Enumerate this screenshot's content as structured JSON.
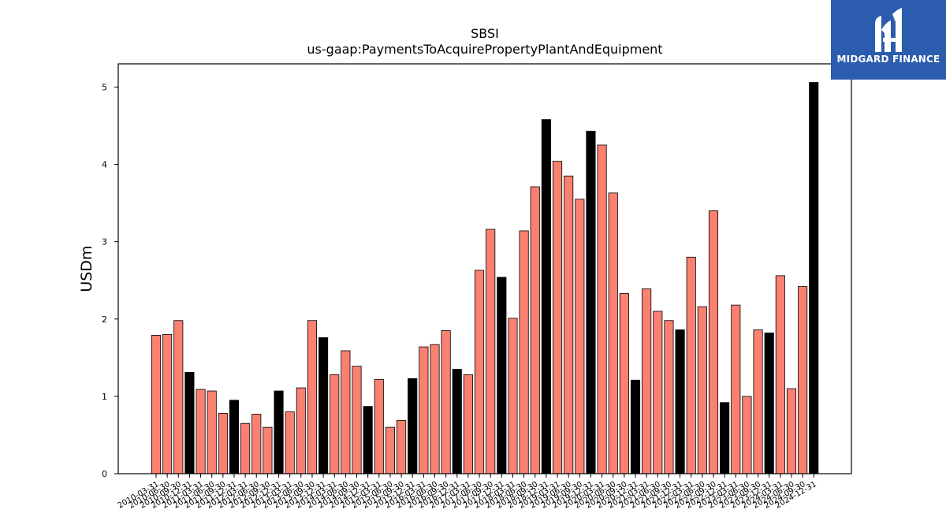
{
  "chart_data": {
    "type": "bar",
    "title": "SBSI",
    "subtitle": "us-gaap:PaymentsToAcquirePropertyPlantAndEquipment",
    "xlabel": "",
    "ylabel": "USDm",
    "ylim": [
      0,
      5.3
    ],
    "yticks": [
      0,
      1,
      2,
      3,
      4,
      5
    ],
    "grid": false,
    "colors": {
      "quarter": "#fa8072",
      "annual": "#000000",
      "edge": "#000000"
    },
    "categories": [
      "2010-03-31",
      "2010-06-30",
      "2010-09-30",
      "2010-12-31",
      "2011-03-31",
      "2011-06-30",
      "2011-09-30",
      "2011-12-31",
      "2012-03-31",
      "2012-06-30",
      "2012-09-30",
      "2012-12-31",
      "2013-03-31",
      "2013-06-30",
      "2013-09-30",
      "2013-12-31",
      "2014-03-31",
      "2014-06-30",
      "2014-09-30",
      "2014-12-31",
      "2015-03-31",
      "2015-06-30",
      "2015-09-30",
      "2015-12-31",
      "2016-03-31",
      "2016-06-30",
      "2016-09-30",
      "2016-12-31",
      "2017-03-31",
      "2017-06-30",
      "2017-09-30",
      "2017-12-31",
      "2018-03-31",
      "2018-06-30",
      "2018-09-30",
      "2018-12-31",
      "2019-03-31",
      "2019-06-30",
      "2019-09-30",
      "2019-12-31",
      "2020-03-31",
      "2020-06-30",
      "2020-09-30",
      "2020-12-31",
      "2021-03-31",
      "2021-06-30",
      "2021-09-30",
      "2021-12-31",
      "2022-03-31",
      "2022-06-30",
      "2022-09-30",
      "2022-12-31",
      "2023-03-31",
      "2023-06-30",
      "2023-09-30",
      "2023-12-31",
      "2024-03-31",
      "2024-06-30",
      "2024-09-30",
      "2024-12-31"
    ],
    "values": [
      1.79,
      1.8,
      1.98,
      1.31,
      1.09,
      1.07,
      0.78,
      0.95,
      0.65,
      0.77,
      0.6,
      1.07,
      0.8,
      1.11,
      1.98,
      1.76,
      1.28,
      1.59,
      1.39,
      0.87,
      1.22,
      0.6,
      0.69,
      1.23,
      1.64,
      1.67,
      1.85,
      1.35,
      1.28,
      2.63,
      3.16,
      2.54,
      2.01,
      3.14,
      3.71,
      4.58,
      4.04,
      3.85,
      3.55,
      4.43,
      4.25,
      3.63,
      2.33,
      1.21,
      2.39,
      2.1,
      1.98,
      1.86,
      2.8,
      2.16,
      3.4,
      0.92,
      2.18,
      1.0,
      1.86,
      1.82,
      2.56,
      1.1,
      2.42,
      5.06
    ],
    "annual_flags": [
      false,
      false,
      false,
      true,
      false,
      false,
      false,
      true,
      false,
      false,
      false,
      true,
      false,
      false,
      false,
      true,
      false,
      false,
      false,
      true,
      false,
      false,
      false,
      true,
      false,
      false,
      false,
      true,
      false,
      false,
      false,
      true,
      false,
      false,
      false,
      true,
      false,
      false,
      false,
      true,
      false,
      false,
      false,
      true,
      false,
      false,
      false,
      true,
      false,
      false,
      false,
      true,
      false,
      false,
      false,
      true,
      false,
      false,
      false,
      true
    ]
  },
  "logo": {
    "text": "MIDGARD FINANCE",
    "icon": "midgard-logo-icon"
  }
}
